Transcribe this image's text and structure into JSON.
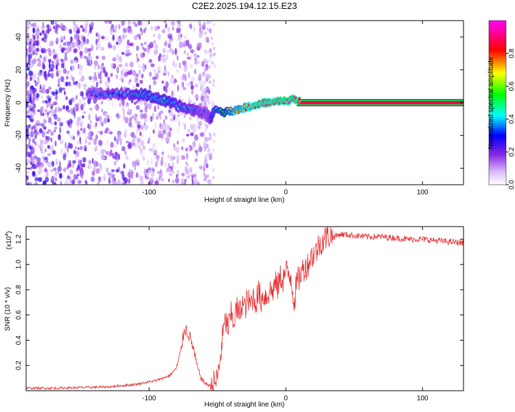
{
  "figure": {
    "title": "C2E2.2025.194.12.15.E23"
  },
  "chart_data": [
    {
      "type": "heatmap",
      "xlabel": "Height of straight line (km)",
      "ylabel": "Frequency (Hz)",
      "xlim": [
        -190,
        130
      ],
      "ylim": [
        -50,
        50
      ],
      "xticks": [
        -100,
        0,
        100
      ],
      "yticks": [
        -40,
        -20,
        0,
        20,
        40
      ],
      "xtick_labels": [
        "-100",
        "0",
        "100"
      ],
      "ytick_labels": [
        "-40",
        "-20",
        "0",
        "20",
        "40"
      ],
      "colorbar": {
        "label": "Normalized spectral amplitude",
        "range": [
          0,
          1
        ],
        "ticks": [
          0.0,
          0.2,
          0.4,
          0.6,
          0.8
        ],
        "tick_labels": [
          "0.0",
          "0.2",
          "0.4",
          "0.6",
          "0.8"
        ],
        "colors": [
          "#ffffff",
          "#8a2be2",
          "#0000ff",
          "#00ffff",
          "#00ff00",
          "#ffff00",
          "#ff0000",
          "#ff00ff"
        ]
      },
      "trace": {
        "x": [
          -145,
          -130,
          -115,
          -105,
          -95,
          -85,
          -75,
          -65,
          -58,
          -55,
          -52,
          -45,
          -40,
          -35,
          -30,
          -25,
          -20,
          -15,
          -10,
          -5,
          0,
          5,
          10,
          20,
          50,
          80,
          110,
          130
        ],
        "freq": [
          5,
          6,
          5,
          5,
          3,
          0,
          -3,
          -5,
          -7,
          -10,
          -4,
          -6,
          -5,
          -4,
          -3,
          -2,
          -1,
          0,
          0,
          1,
          1,
          2,
          1,
          0,
          0,
          0,
          0,
          0
        ],
        "amplitude": [
          0.3,
          0.35,
          0.4,
          0.45,
          0.45,
          0.45,
          0.4,
          0.35,
          0.3,
          0.35,
          0.45,
          0.6,
          0.7,
          0.75,
          0.8,
          0.85,
          0.9,
          0.9,
          0.9,
          0.95,
          0.95,
          0.95,
          0.9,
          0.95,
          0.98,
          0.98,
          0.98,
          0.98
        ]
      },
      "noise_region_x": [
        -190,
        -55
      ],
      "carrier_freq": 0
    },
    {
      "type": "line",
      "xlabel": "Height of straight line (km)",
      "ylabel": "SNR (10 * v/v)",
      "y_scale_label": "(x10",
      "y_scale_exponent": "4",
      "xlim": [
        -190,
        130
      ],
      "ylim": [
        0,
        1.3
      ],
      "xticks": [
        -100,
        0,
        100
      ],
      "yticks": [
        0.2,
        0.4,
        0.6,
        0.8,
        1.0,
        1.2
      ],
      "xtick_labels": [
        "-100",
        "0",
        "100"
      ],
      "ytick_labels": [
        "0.2",
        "0.4",
        "0.6",
        "0.8",
        "1.0",
        "1.2"
      ],
      "series": [
        {
          "color": "#e8282b",
          "x": [
            -190,
            -170,
            -150,
            -130,
            -120,
            -110,
            -100,
            -95,
            -90,
            -85,
            -80,
            -77,
            -74,
            -71,
            -68,
            -65,
            -62,
            -60,
            -58,
            -55,
            -52,
            -50,
            -48,
            -46,
            -44,
            -42,
            -40,
            -38,
            -36,
            -34,
            -32,
            -30,
            -28,
            -26,
            -24,
            -22,
            -20,
            -18,
            -16,
            -14,
            -12,
            -10,
            -8,
            -6,
            -4,
            -2,
            0,
            2,
            4,
            6,
            8,
            10,
            12,
            14,
            16,
            18,
            20,
            22,
            24,
            26,
            28,
            30,
            32,
            35,
            40,
            50,
            60,
            70,
            80,
            90,
            100,
            110,
            120,
            130
          ],
          "y": [
            0.02,
            0.02,
            0.025,
            0.03,
            0.04,
            0.05,
            0.07,
            0.08,
            0.1,
            0.12,
            0.18,
            0.3,
            0.5,
            0.45,
            0.35,
            0.2,
            0.1,
            0.07,
            0.05,
            0.04,
            0.06,
            0.1,
            0.25,
            0.45,
            0.55,
            0.5,
            0.6,
            0.55,
            0.65,
            0.6,
            0.7,
            0.65,
            0.72,
            0.68,
            0.75,
            0.7,
            0.78,
            0.72,
            0.76,
            0.74,
            0.8,
            0.78,
            0.85,
            0.82,
            0.9,
            0.88,
            0.95,
            0.92,
            0.9,
            0.7,
            0.85,
            0.9,
            0.95,
            0.98,
            1.0,
            1.05,
            1.08,
            1.1,
            1.15,
            1.18,
            1.2,
            1.22,
            1.23,
            1.22,
            1.24,
            1.23,
            1.22,
            1.22,
            1.21,
            1.2,
            1.2,
            1.19,
            1.18,
            1.17
          ]
        }
      ]
    }
  ]
}
